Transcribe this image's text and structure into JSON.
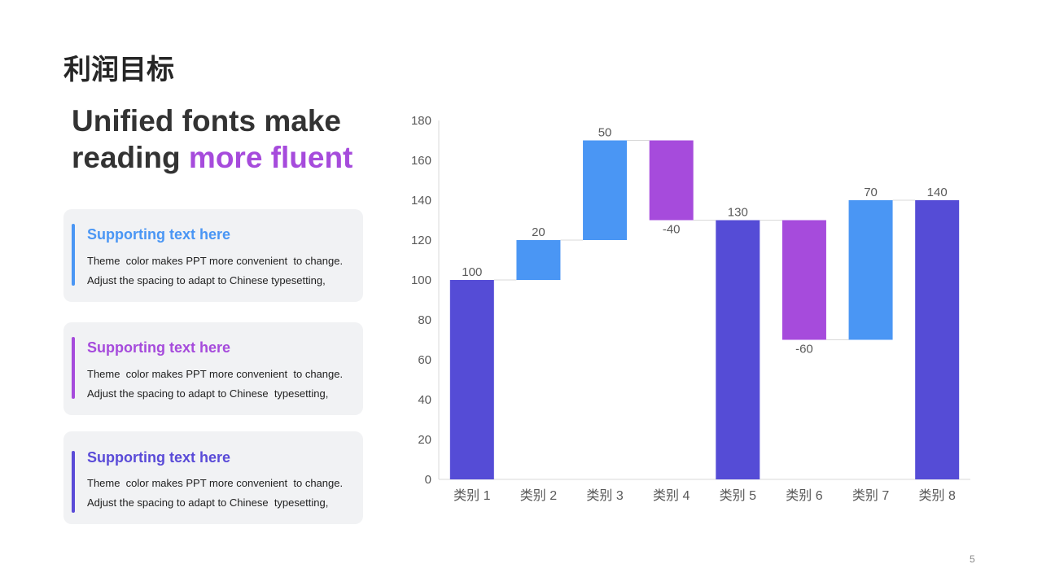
{
  "slide": {
    "title": "利润目标",
    "headline_part1": "Unified fonts make",
    "headline_part2": "reading ",
    "headline_accent": "more fluent",
    "page_number": "5"
  },
  "cards": [
    {
      "title": "Supporting text here",
      "line1": "Theme  color makes PPT more convenient  to change.",
      "line2": "Adjust the spacing to adapt to Chinese typesetting,",
      "color": "#4a96f4"
    },
    {
      "title": "Supporting text here",
      "line1": "Theme  color makes PPT more convenient  to change.",
      "line2": "Adjust the spacing to adapt to Chinese  typesetting,",
      "color": "#a64bdc"
    },
    {
      "title": "Supporting text here",
      "line1": "Theme  color makes PPT more convenient  to change.",
      "line2": "Adjust the spacing to adapt to Chinese  typesetting,",
      "color": "#5a4bd8"
    }
  ],
  "colors": {
    "total": "#554cd6",
    "increase": "#4a96f4",
    "decrease": "#a64bdc",
    "accent": "#a64bdc"
  },
  "chart_data": {
    "type": "bar",
    "subtype": "waterfall",
    "categories": [
      "类别 1",
      "类别 2",
      "类别 3",
      "类别 4",
      "类别 5",
      "类别 6",
      "类别 7",
      "类别 8"
    ],
    "bars": [
      {
        "label": "100",
        "base": 0,
        "top": 100,
        "kind": "total"
      },
      {
        "label": "20",
        "base": 100,
        "top": 120,
        "kind": "increase"
      },
      {
        "label": "50",
        "base": 120,
        "top": 170,
        "kind": "increase"
      },
      {
        "label": "-40",
        "base": 130,
        "top": 170,
        "kind": "decrease"
      },
      {
        "label": "130",
        "base": 0,
        "top": 130,
        "kind": "total"
      },
      {
        "label": "-60",
        "base": 70,
        "top": 130,
        "kind": "decrease"
      },
      {
        "label": "70",
        "base": 70,
        "top": 140,
        "kind": "increase"
      },
      {
        "label": "140",
        "base": 0,
        "top": 140,
        "kind": "total"
      }
    ],
    "yticks": [
      0,
      20,
      40,
      60,
      80,
      100,
      120,
      140,
      160,
      180
    ],
    "ylim": [
      0,
      180
    ],
    "grid": false
  }
}
